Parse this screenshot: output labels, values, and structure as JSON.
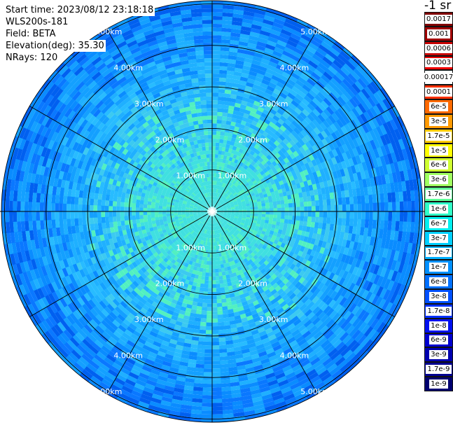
{
  "info": {
    "start_time": "Start time: 2023/08/12 23:18:18",
    "instrument": "WLS200s-181",
    "field": "Field: BETA",
    "elevation": "Elevation(deg): 35.30",
    "nrays": "NRays: 120"
  },
  "colorbar": {
    "unit_label": "-1 sr",
    "labels": [
      "0.0017",
      "0.001",
      "0.0006",
      "0.0003",
      "0.00017",
      "0.0001",
      "6e-5",
      "3e-5",
      "1.7e-5",
      "1e-5",
      "6e-6",
      "3e-6",
      "1.7e-6",
      "1e-6",
      "6e-7",
      "3e-7",
      "1.7e-7",
      "1e-7",
      "6e-8",
      "3e-8",
      "1.7e-8",
      "1e-8",
      "6e-9",
      "3e-9",
      "1.7e-9",
      "1e-9"
    ],
    "colors": [
      "#800000",
      "#a00000",
      "#c80000",
      "#f00000",
      "#ffffff",
      "#ff3000",
      "#ff6a00",
      "#ff9a00",
      "#ffcc00",
      "#ffff00",
      "#d0ff30",
      "#a0ff60",
      "#60ff98",
      "#30ffc8",
      "#00f0f0",
      "#00d0ff",
      "#00b0ff",
      "#0090ff",
      "#0070ff",
      "#0050ff",
      "#0030ff",
      "#0010f0",
      "#0000d0",
      "#0000b0",
      "#000090",
      "#000070"
    ]
  },
  "chart_data": {
    "type": "heatmap",
    "projection": "polar",
    "field": "BETA",
    "n_rays": 120,
    "range_rings_km": [
      1,
      2,
      3,
      4,
      5
    ],
    "ring_labels": [
      "1.00km",
      "2.00km",
      "3.00km",
      "4.00km",
      "5.00km"
    ],
    "spoke_interval_deg": 30,
    "max_range_km": 5.0,
    "dominant_value_range": [
      "1.7e-7",
      "1e-8"
    ],
    "grid": true
  }
}
